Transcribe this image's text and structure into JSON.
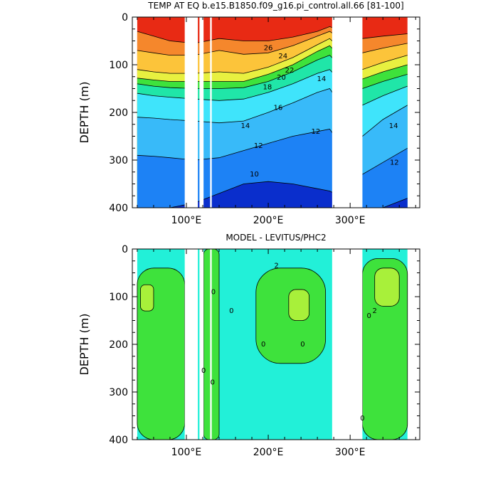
{
  "chart_data": [
    {
      "type": "heatmap",
      "title": "TEMP AT EQ b.e15.B1850.f09_g16.pi_control.all.66 [81-100]",
      "ylabel": "DEPTH (m)",
      "xlabel": "",
      "ylim": [
        400,
        0
      ],
      "xlim": [
        34,
        385
      ],
      "x_ticks": [
        {
          "value": 100,
          "label": "100°E"
        },
        {
          "value": 200,
          "label": "200°E"
        },
        {
          "value": 300,
          "label": "300°E"
        }
      ],
      "y_ticks": [
        0,
        100,
        200,
        300,
        400
      ],
      "y_tick_labels": [
        "0",
        "100",
        "200",
        "300",
        "400"
      ],
      "land_gaps_lon": [
        [
          98,
          114
        ],
        [
          116,
          121
        ],
        [
          129,
          131
        ],
        [
          278,
          315
        ]
      ],
      "color_levels": [
        9,
        10,
        11,
        12,
        13,
        14,
        15,
        16,
        17,
        18,
        19,
        20,
        21,
        22,
        23,
        24,
        25,
        26,
        27,
        28
      ],
      "colors": [
        "#0a2ecc",
        "#1560ee",
        "#1d82f5",
        "#2aa0f7",
        "#38baf9",
        "#3fd0fa",
        "#3fe4fb",
        "#2ef7f7",
        "#20e6a8",
        "#1ed84a",
        "#3ee23c",
        "#a8f03a",
        "#e8f040",
        "#fde040",
        "#fcc43a",
        "#f8a232",
        "#f5872c",
        "#f26c22",
        "#ee4e1a",
        "#e82a14"
      ],
      "isotherm_depths": [
        {
          "value": 26,
          "depths": [
            [
              40,
              30
            ],
            [
              60,
              40
            ],
            [
              80,
              50
            ],
            [
              110,
              55
            ],
            [
              140,
              45
            ],
            [
              170,
              50
            ],
            [
              200,
              50
            ],
            [
              230,
              42
            ],
            [
              260,
              30
            ],
            [
              275,
              20
            ],
            [
              315,
              45
            ],
            [
              340,
              40
            ],
            [
              370,
              35
            ]
          ]
        },
        {
          "value": 24,
          "depths": [
            [
              40,
              70
            ],
            [
              60,
              75
            ],
            [
              80,
              80
            ],
            [
              110,
              80
            ],
            [
              140,
              70
            ],
            [
              170,
              78
            ],
            [
              200,
              75
            ],
            [
              230,
              60
            ],
            [
              260,
              40
            ],
            [
              275,
              30
            ],
            [
              315,
              75
            ],
            [
              340,
              65
            ],
            [
              370,
              55
            ]
          ]
        },
        {
          "value": 22,
          "depths": [
            [
              40,
              110
            ],
            [
              60,
              115
            ],
            [
              80,
              118
            ],
            [
              110,
              118
            ],
            [
              140,
              115
            ],
            [
              170,
              118
            ],
            [
              200,
              105
            ],
            [
              230,
              85
            ],
            [
              260,
              58
            ],
            [
              275,
              45
            ],
            [
              315,
              110
            ],
            [
              340,
              95
            ],
            [
              370,
              80
            ]
          ]
        },
        {
          "value": 20,
          "depths": [
            [
              40,
              128
            ],
            [
              60,
              132
            ],
            [
              80,
              135
            ],
            [
              110,
              135
            ],
            [
              140,
              135
            ],
            [
              170,
              135
            ],
            [
              200,
              120
            ],
            [
              230,
              100
            ],
            [
              260,
              72
            ],
            [
              275,
              60
            ],
            [
              315,
              130
            ],
            [
              340,
              115
            ],
            [
              370,
              100
            ]
          ]
        },
        {
          "value": 18,
          "depths": [
            [
              40,
              140
            ],
            [
              60,
              145
            ],
            [
              80,
              148
            ],
            [
              110,
              150
            ],
            [
              140,
              150
            ],
            [
              170,
              148
            ],
            [
              200,
              135
            ],
            [
              230,
              115
            ],
            [
              260,
              90
            ],
            [
              275,
              80
            ],
            [
              315,
              150
            ],
            [
              340,
              135
            ],
            [
              370,
              120
            ]
          ]
        },
        {
          "value": 16,
          "depths": [
            [
              40,
              160
            ],
            [
              60,
              165
            ],
            [
              80,
              168
            ],
            [
              110,
              172
            ],
            [
              140,
              175
            ],
            [
              170,
              172
            ],
            [
              200,
              158
            ],
            [
              230,
              140
            ],
            [
              260,
              118
            ],
            [
              275,
              110
            ],
            [
              315,
              185
            ],
            [
              340,
              165
            ],
            [
              370,
              145
            ]
          ]
        },
        {
          "value": 14,
          "depths": [
            [
              40,
              210
            ],
            [
              60,
              212
            ],
            [
              80,
              215
            ],
            [
              110,
              218
            ],
            [
              140,
              222
            ],
            [
              170,
              218
            ],
            [
              200,
              200
            ],
            [
              230,
              180
            ],
            [
              260,
              158
            ],
            [
              275,
              150
            ],
            [
              315,
              250
            ],
            [
              340,
              215
            ],
            [
              370,
              185
            ]
          ]
        },
        {
          "value": 12,
          "depths": [
            [
              40,
              290
            ],
            [
              60,
              292
            ],
            [
              80,
              295
            ],
            [
              110,
              300
            ],
            [
              140,
              295
            ],
            [
              170,
              280
            ],
            [
              200,
              265
            ],
            [
              230,
              250
            ],
            [
              260,
              240
            ],
            [
              275,
              235
            ],
            [
              315,
              330
            ],
            [
              340,
              305
            ],
            [
              370,
              275
            ]
          ]
        },
        {
          "value": 10,
          "depths": [
            [
              40,
              400
            ],
            [
              60,
              400
            ],
            [
              80,
              400
            ],
            [
              110,
              390
            ],
            [
              140,
              370
            ],
            [
              170,
              350
            ],
            [
              200,
              345
            ],
            [
              230,
              350
            ],
            [
              260,
              360
            ],
            [
              275,
              365
            ],
            [
              315,
              400
            ],
            [
              340,
              400
            ],
            [
              370,
              380
            ]
          ]
        }
      ],
      "contour_labels": [
        {
          "text": "26",
          "lon": 200,
          "depth": 65
        },
        {
          "text": "24",
          "lon": 218,
          "depth": 82
        },
        {
          "text": "22",
          "lon": 226,
          "depth": 112
        },
        {
          "text": "20",
          "lon": 216,
          "depth": 127
        },
        {
          "text": "18",
          "lon": 199,
          "depth": 147
        },
        {
          "text": "16",
          "lon": 212,
          "depth": 190
        },
        {
          "text": "14",
          "lon": 265,
          "depth": 130
        },
        {
          "text": "14",
          "lon": 172,
          "depth": 228
        },
        {
          "text": "14",
          "lon": 353,
          "depth": 228
        },
        {
          "text": "12",
          "lon": 258,
          "depth": 240
        },
        {
          "text": "12",
          "lon": 188,
          "depth": 270
        },
        {
          "text": "12",
          "lon": 354,
          "depth": 305
        },
        {
          "text": "10",
          "lon": 183,
          "depth": 330
        }
      ]
    },
    {
      "type": "heatmap",
      "title": "MODEL - LEVITUS/PHC2",
      "ylabel": "DEPTH (m)",
      "xlabel": "",
      "ylim": [
        400,
        0
      ],
      "xlim": [
        34,
        385
      ],
      "x_ticks": [
        {
          "value": 100,
          "label": "100°E"
        },
        {
          "value": 200,
          "label": "200°E"
        },
        {
          "value": 300,
          "label": "300°E"
        }
      ],
      "y_ticks": [
        0,
        100,
        200,
        300,
        400
      ],
      "y_tick_labels": [
        "0",
        "100",
        "200",
        "300",
        "400"
      ],
      "land_gaps_lon": [
        [
          98,
          114
        ],
        [
          116,
          121
        ],
        [
          129,
          131
        ],
        [
          278,
          315
        ]
      ],
      "color_levels": [
        -2,
        0,
        2
      ],
      "colors": [
        "#22f0d8",
        "#22e8a0",
        "#3ee23c",
        "#a8f03a"
      ],
      "anomaly_regions": [
        {
          "level": 0,
          "lon_range": [
            40,
            98
          ],
          "depth_range": [
            40,
            400
          ]
        },
        {
          "level": 0,
          "lon_range": [
            121,
            140
          ],
          "depth_range": [
            0,
            400
          ]
        },
        {
          "level": 0,
          "lon_range": [
            185,
            270
          ],
          "depth_range": [
            40,
            240
          ]
        },
        {
          "level": 0,
          "lon_range": [
            315,
            370
          ],
          "depth_range": [
            20,
            400
          ]
        },
        {
          "level": 2,
          "lon_range": [
            44,
            60
          ],
          "depth_range": [
            75,
            130
          ]
        },
        {
          "level": 2,
          "lon_range": [
            225,
            250
          ],
          "depth_range": [
            85,
            150
          ]
        },
        {
          "level": 2,
          "lon_range": [
            330,
            360
          ],
          "depth_range": [
            40,
            120
          ]
        }
      ],
      "contour_labels": [
        {
          "text": "2",
          "lon": 210,
          "depth": 35
        },
        {
          "text": "0",
          "lon": 133,
          "depth": 90
        },
        {
          "text": "0",
          "lon": 155,
          "depth": 130
        },
        {
          "text": "0",
          "lon": 194,
          "depth": 200
        },
        {
          "text": "0",
          "lon": 242,
          "depth": 200
        },
        {
          "text": "0",
          "lon": 121,
          "depth": 255
        },
        {
          "text": "0",
          "lon": 132,
          "depth": 280
        },
        {
          "text": "0",
          "lon": 323,
          "depth": 140
        },
        {
          "text": "2",
          "lon": 330,
          "depth": 130
        },
        {
          "text": "0",
          "lon": 315,
          "depth": 355
        }
      ]
    }
  ]
}
